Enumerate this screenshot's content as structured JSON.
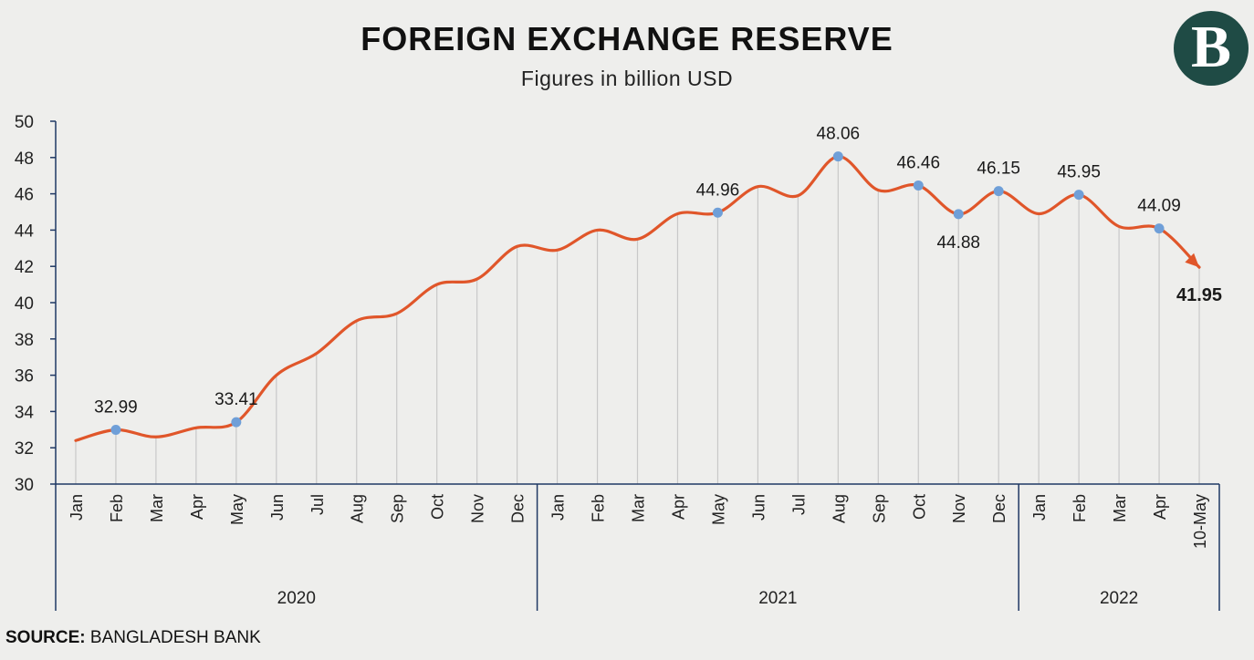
{
  "header": {
    "title": "FOREIGN EXCHANGE RESERVE",
    "subtitle": "Figures in billion USD",
    "logo_letter": "B"
  },
  "footer": {
    "source_label": "SOURCE:",
    "source_value": " BANGLADESH BANK"
  },
  "colors": {
    "line": "#e0562a",
    "marker": "#6f9fd8",
    "axis": "#1f3864",
    "grid": "#c8c8c8",
    "logo_bg": "#1f4b45"
  },
  "chart_data": {
    "type": "line",
    "title": "FOREIGN EXCHANGE RESERVE",
    "subtitle": "Figures in billion USD",
    "ylim": [
      30,
      50
    ],
    "yticks": [
      30,
      32,
      34,
      36,
      38,
      40,
      42,
      44,
      46,
      48,
      50
    ],
    "categories": [
      "Jan",
      "Feb",
      "Mar",
      "Apr",
      "May",
      "Jun",
      "Jul",
      "Aug",
      "Sep",
      "Oct",
      "Nov",
      "Dec",
      "Jan",
      "Feb",
      "Mar",
      "Apr",
      "May",
      "Jun",
      "Jul",
      "Aug",
      "Sep",
      "Oct",
      "Nov",
      "Dec",
      "Jan",
      "Feb",
      "Mar",
      "Apr",
      "10-May"
    ],
    "values": [
      32.4,
      32.99,
      32.6,
      33.1,
      33.41,
      36.0,
      37.2,
      39.0,
      39.4,
      41.0,
      41.3,
      43.1,
      42.9,
      44.0,
      43.5,
      44.9,
      44.96,
      46.4,
      45.9,
      48.06,
      46.2,
      46.46,
      44.88,
      46.15,
      44.9,
      45.95,
      44.2,
      44.09,
      41.95
    ],
    "years": [
      {
        "label": "2020",
        "start": 0,
        "end": 11
      },
      {
        "label": "2021",
        "start": 12,
        "end": 23
      },
      {
        "label": "2022",
        "start": 24,
        "end": 28
      }
    ],
    "annotations": [
      {
        "index": 1,
        "text": "32.99",
        "marker": true,
        "position": "above",
        "bold": false
      },
      {
        "index": 4,
        "text": "33.41",
        "marker": true,
        "position": "above",
        "bold": false
      },
      {
        "index": 16,
        "text": "44.96",
        "marker": true,
        "position": "above",
        "bold": false
      },
      {
        "index": 19,
        "text": "48.06",
        "marker": true,
        "position": "above",
        "bold": false
      },
      {
        "index": 21,
        "text": "46.46",
        "marker": true,
        "position": "above",
        "bold": false
      },
      {
        "index": 22,
        "text": "44.88",
        "marker": true,
        "position": "below",
        "bold": false
      },
      {
        "index": 23,
        "text": "46.15",
        "marker": true,
        "position": "above",
        "bold": false
      },
      {
        "index": 25,
        "text": "45.95",
        "marker": true,
        "position": "above",
        "bold": false
      },
      {
        "index": 27,
        "text": "44.09",
        "marker": true,
        "position": "above",
        "bold": false
      },
      {
        "index": 28,
        "text": "41.95",
        "marker": false,
        "position": "below",
        "bold": true
      }
    ],
    "grid": "vertical",
    "end_arrow": true
  }
}
